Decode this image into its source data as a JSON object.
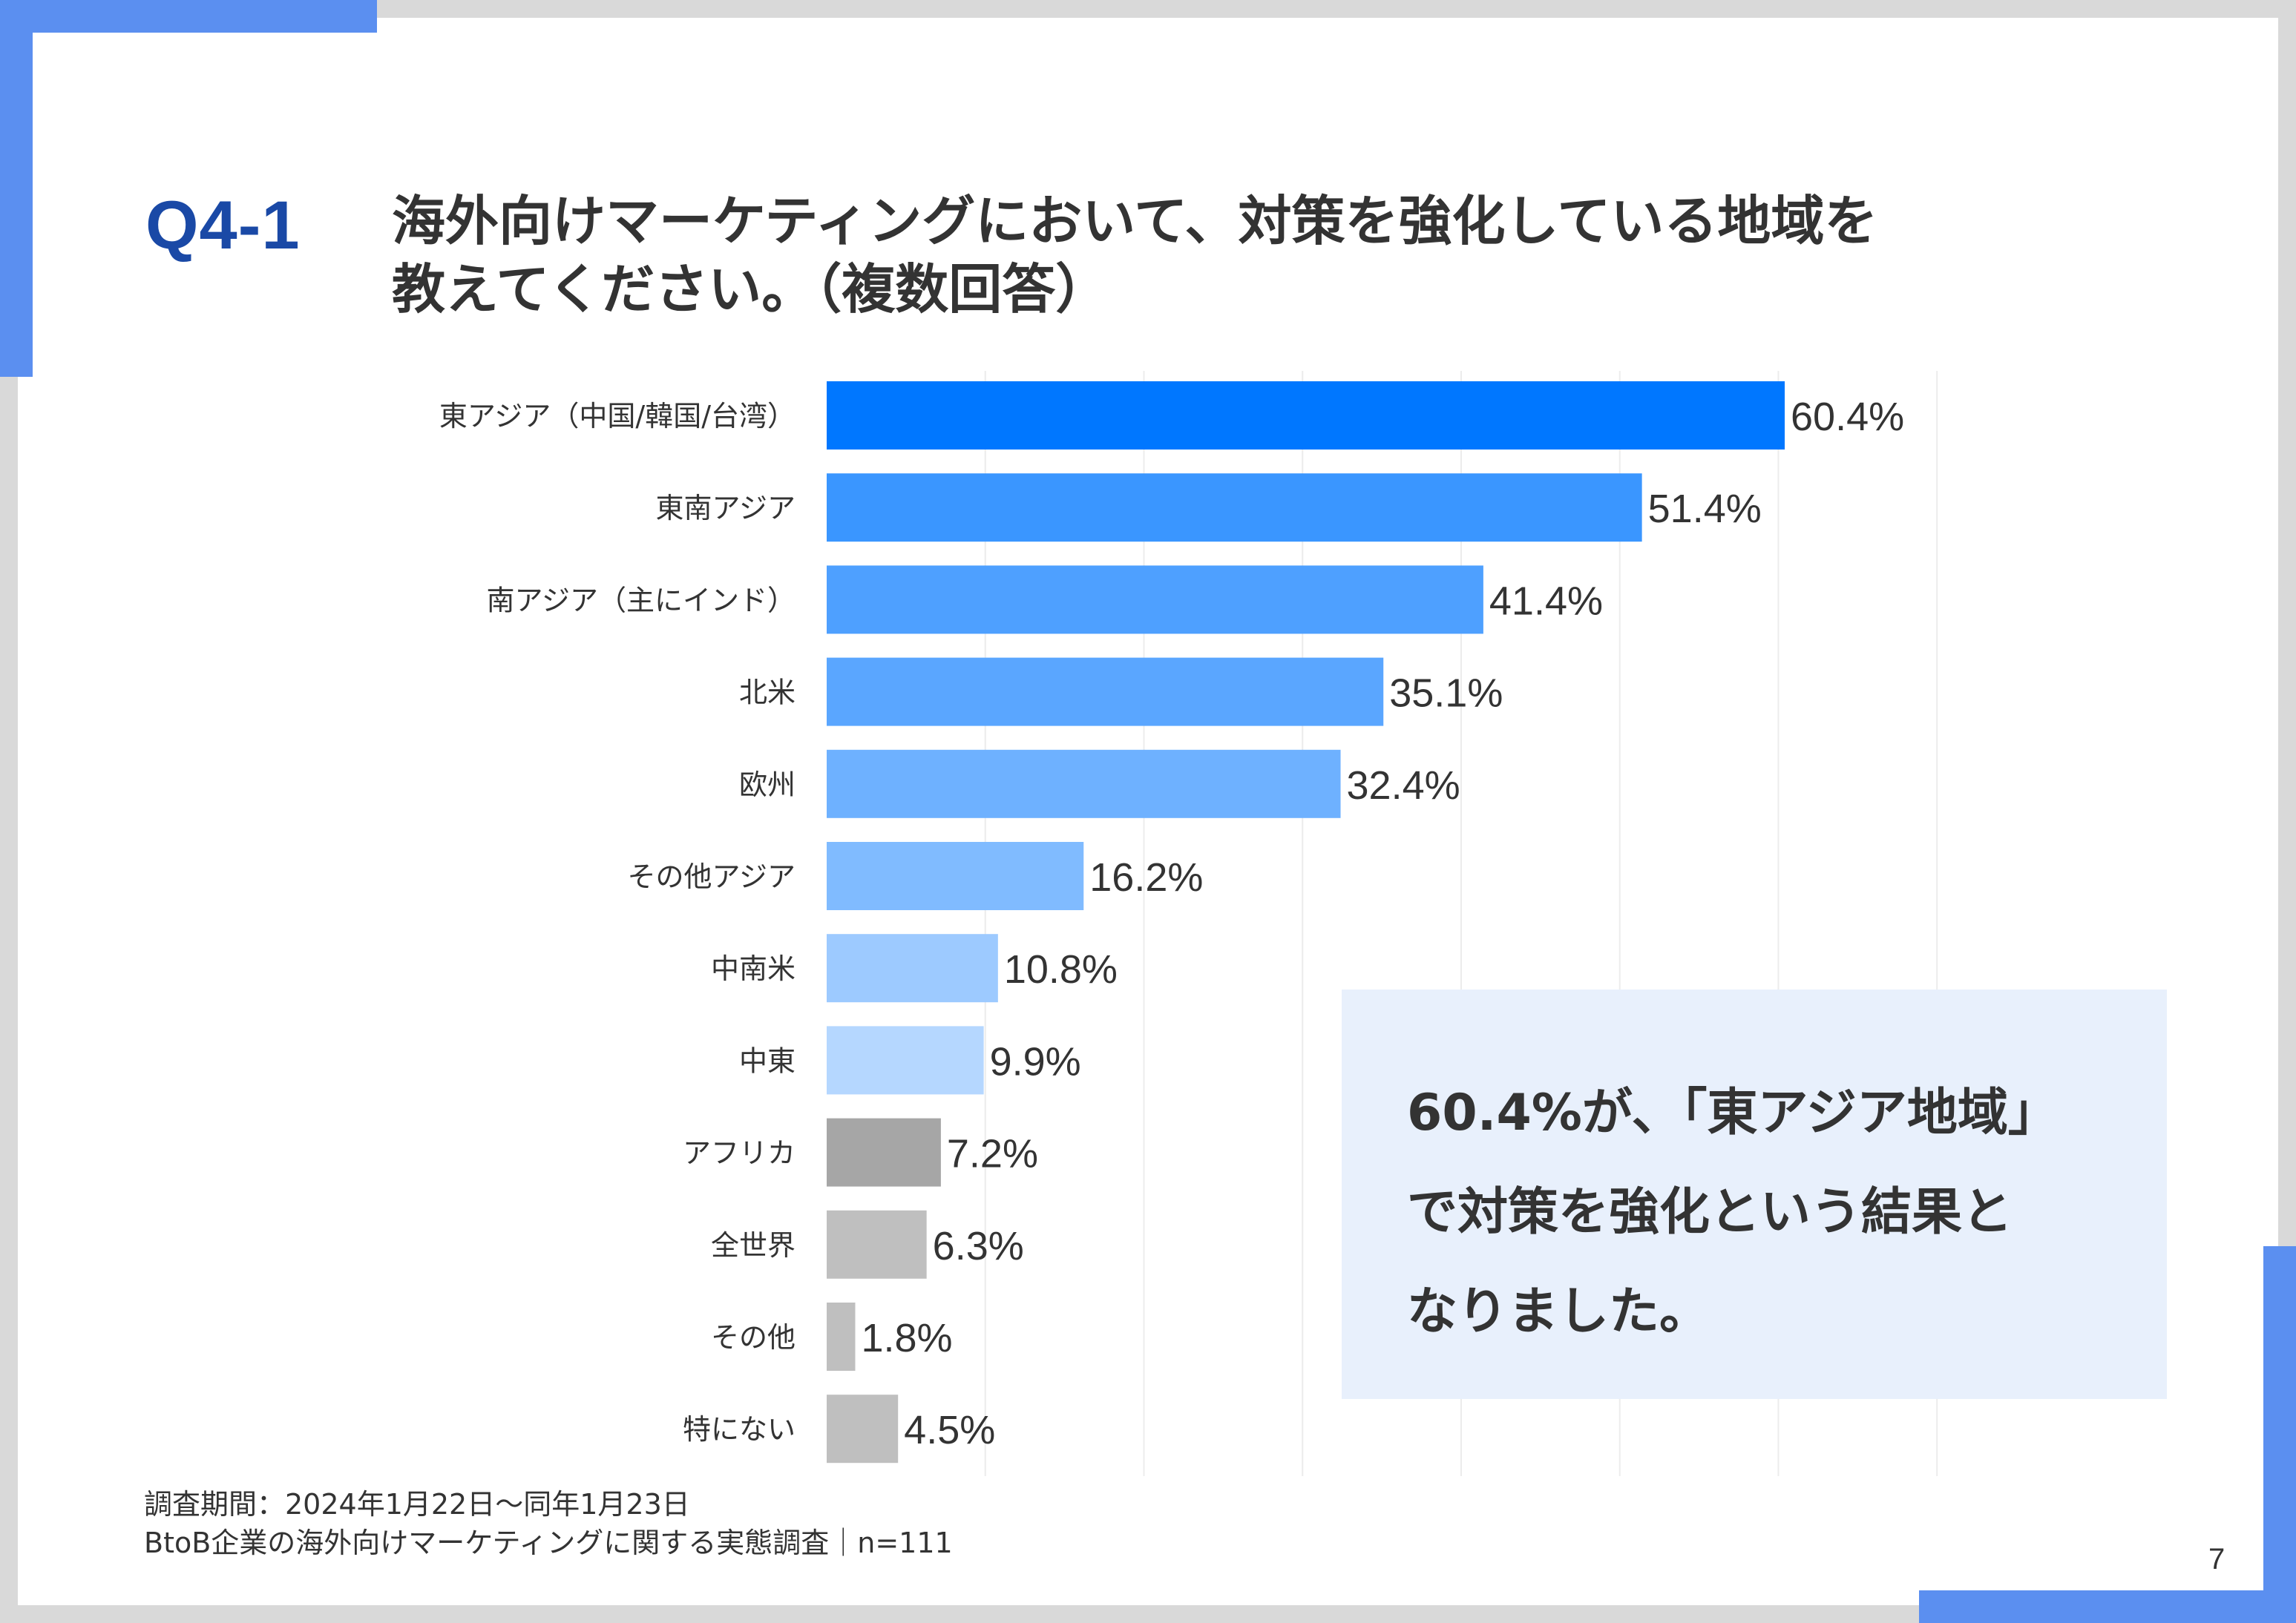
{
  "header": {
    "question_label": "Q4-1",
    "title_line1": "海外向けマーケティングにおいて、対策を強化している地域を",
    "title_line2": "教えてください。（複数回答）"
  },
  "chart_data": {
    "type": "bar",
    "orientation": "horizontal",
    "categories": [
      "東アジア（中国/韓国/台湾）",
      "東南アジア",
      "南アジア（主にインド）",
      "北米",
      "欧州",
      "その他アジア",
      "中南米",
      "中東",
      "アフリカ",
      "全世界",
      "その他",
      "特にない"
    ],
    "values": [
      60.4,
      51.4,
      41.4,
      35.1,
      32.4,
      16.2,
      10.8,
      9.9,
      7.2,
      6.3,
      1.8,
      4.5
    ],
    "value_labels": [
      "60.4%",
      "51.4%",
      "41.4%",
      "35.1%",
      "32.4%",
      "16.2%",
      "10.8%",
      "9.9%",
      "7.2%",
      "6.3%",
      "1.8%",
      "4.5%"
    ],
    "colors": [
      "#0077ff",
      "#3a96ff",
      "#4ea0ff",
      "#5aa6ff",
      "#6eb1ff",
      "#80bbff",
      "#9dcaff",
      "#b5d7ff",
      "#a6a6a6",
      "#bfbfbf",
      "#bfbfbf",
      "#bfbfbf"
    ],
    "title": "",
    "xlabel": "",
    "ylabel": "",
    "xlim": [
      0,
      70
    ],
    "grid": true,
    "legend": "none"
  },
  "callout": {
    "line1": "60.4%が、「東アジア地域」",
    "line2": "で対策を強化という結果と",
    "line3": "なりました。"
  },
  "footnote": {
    "line1": "調査期間：2024年1月22日～同年1月23日",
    "line2": "BtoB企業の海外向けマーケティングに関する実態調査｜n=111"
  },
  "page_number": "7"
}
